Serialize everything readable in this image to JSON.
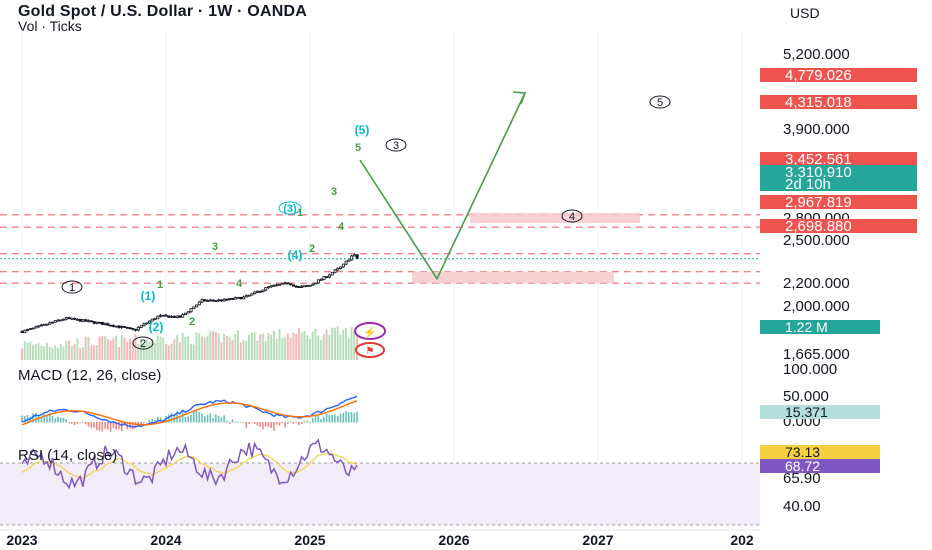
{
  "header": {
    "title": "Gold Spot / U.S. Dollar · 1W · OANDA",
    "subtitle": "Vol · Ticks",
    "currency": "USD"
  },
  "colors": {
    "bull": "#26a69a",
    "bear": "#ef5350",
    "candle": "#131722",
    "dashed": "#f7525f",
    "zone": "#f8c8cc",
    "arrow": "#43a047",
    "wave_teal": "#00bcd4",
    "wave_green": "#43a047",
    "macd": "#2962ff",
    "signal": "#ff6d00",
    "rsi": "#7e57c2",
    "rsi_ma": "#f5d142",
    "rsi_band": "#ede7f6"
  },
  "chart_data": {
    "type": "candlestick",
    "scale": "log",
    "x_ticks": [
      "2023",
      "2024",
      "2025",
      "2026",
      "2027",
      "202"
    ],
    "price_axis_ticks": [
      "5,200.000",
      "3,900.000",
      "2,800.000",
      "2,500.000",
      "2,200.000",
      "2,000.000",
      "1,665.000"
    ],
    "ohlc_weekly_approx": {
      "start": {
        "date": "2023-01",
        "price": 1800
      },
      "mid_2023": {
        "price": 2000
      },
      "low_2023": {
        "price": 1820
      },
      "start_2024": {
        "price": 2050
      },
      "mid_2024": {
        "price": 2350
      },
      "end_2024": {
        "price": 2650
      },
      "latest": {
        "price": 3310.91,
        "high": 3452.561
      }
    },
    "price_labels": [
      {
        "text": "4,779.026",
        "style": "red"
      },
      {
        "text": "4,315.018",
        "style": "red"
      },
      {
        "text": "3,452.561",
        "style": "red"
      },
      {
        "text": "3,310.910",
        "style": "green"
      },
      {
        "text": "2d 10h",
        "style": "green"
      },
      {
        "text": "2,967.819",
        "style": "red"
      },
      {
        "text": "2,698.880",
        "style": "red"
      }
    ],
    "dashed_levels": [
      4779.026,
      4315.018,
      3452.561,
      2967.819,
      2698.88
    ],
    "wave_labels": [
      {
        "text": "1",
        "style": "black-circle"
      },
      {
        "text": "2",
        "style": "black-circle"
      },
      {
        "text": "3",
        "style": "black-circle"
      },
      {
        "text": "4",
        "style": "black-circle"
      },
      {
        "text": "5",
        "style": "black-circle"
      },
      {
        "text": "(1)",
        "style": "teal"
      },
      {
        "text": "(2)",
        "style": "teal"
      },
      {
        "text": "(3)",
        "style": "teal-circle"
      },
      {
        "text": "(4)",
        "style": "teal"
      },
      {
        "text": "(5)",
        "style": "teal"
      },
      {
        "text": "1",
        "style": "green"
      },
      {
        "text": "2",
        "style": "green"
      },
      {
        "text": "3",
        "style": "green"
      },
      {
        "text": "4",
        "style": "green"
      },
      {
        "text": "1",
        "style": "green"
      },
      {
        "text": "2",
        "style": "green"
      },
      {
        "text": "3",
        "style": "green"
      },
      {
        "text": "4",
        "style": "green"
      },
      {
        "text": "5",
        "style": "green"
      }
    ],
    "volume": {
      "label": "1.22 M"
    },
    "macd": {
      "title": "MACD (12, 26, close)",
      "ticks": [
        "100.000",
        "50.000",
        "0.000"
      ],
      "value_label": "15.371"
    },
    "rsi": {
      "title": "RSI (14, close)",
      "ticks": [
        "65.90",
        "40.00"
      ],
      "value_labels": [
        "73.13",
        "68.72"
      ]
    }
  }
}
